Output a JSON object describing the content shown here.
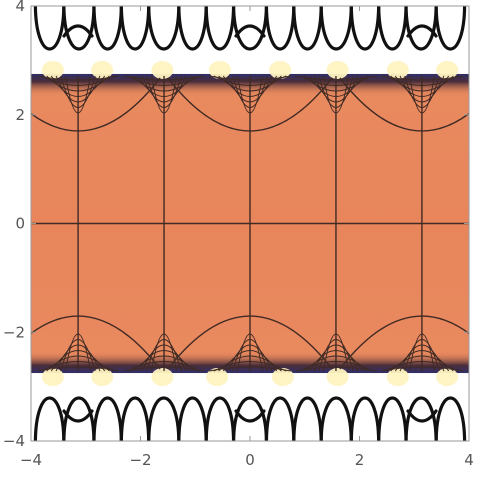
{
  "chart_data": {
    "type": "heatmap",
    "subtype": "contour",
    "title": "",
    "xlabel": "",
    "ylabel": "",
    "xlim": [
      -4,
      4
    ],
    "ylim": [
      -4,
      4
    ],
    "x_ticks": [
      -4,
      -2,
      0,
      2,
      4
    ],
    "y_ticks": [
      -4,
      -2,
      0,
      2,
      4
    ],
    "x_tick_labels": [
      "−4",
      "−2",
      "0",
      "2",
      "4"
    ],
    "y_tick_labels": [
      "−4",
      "−2",
      "0",
      "2",
      "4"
    ],
    "band_edges_y": [
      -2.75,
      2.75
    ],
    "vertical_contours_x": [
      -3.14,
      -1.57,
      0,
      1.57,
      3.14
    ],
    "horizontal_contours_y": [
      0
    ],
    "colors": {
      "interior": "#e8865c",
      "interior_dark": "#d9764e",
      "contour_line": "#3f2a24",
      "edge_hot": "#fff6c8",
      "edge_cold": "#3b3a78",
      "outside": "#ffffff",
      "frame": "#9a9a9a"
    },
    "grid": false
  }
}
